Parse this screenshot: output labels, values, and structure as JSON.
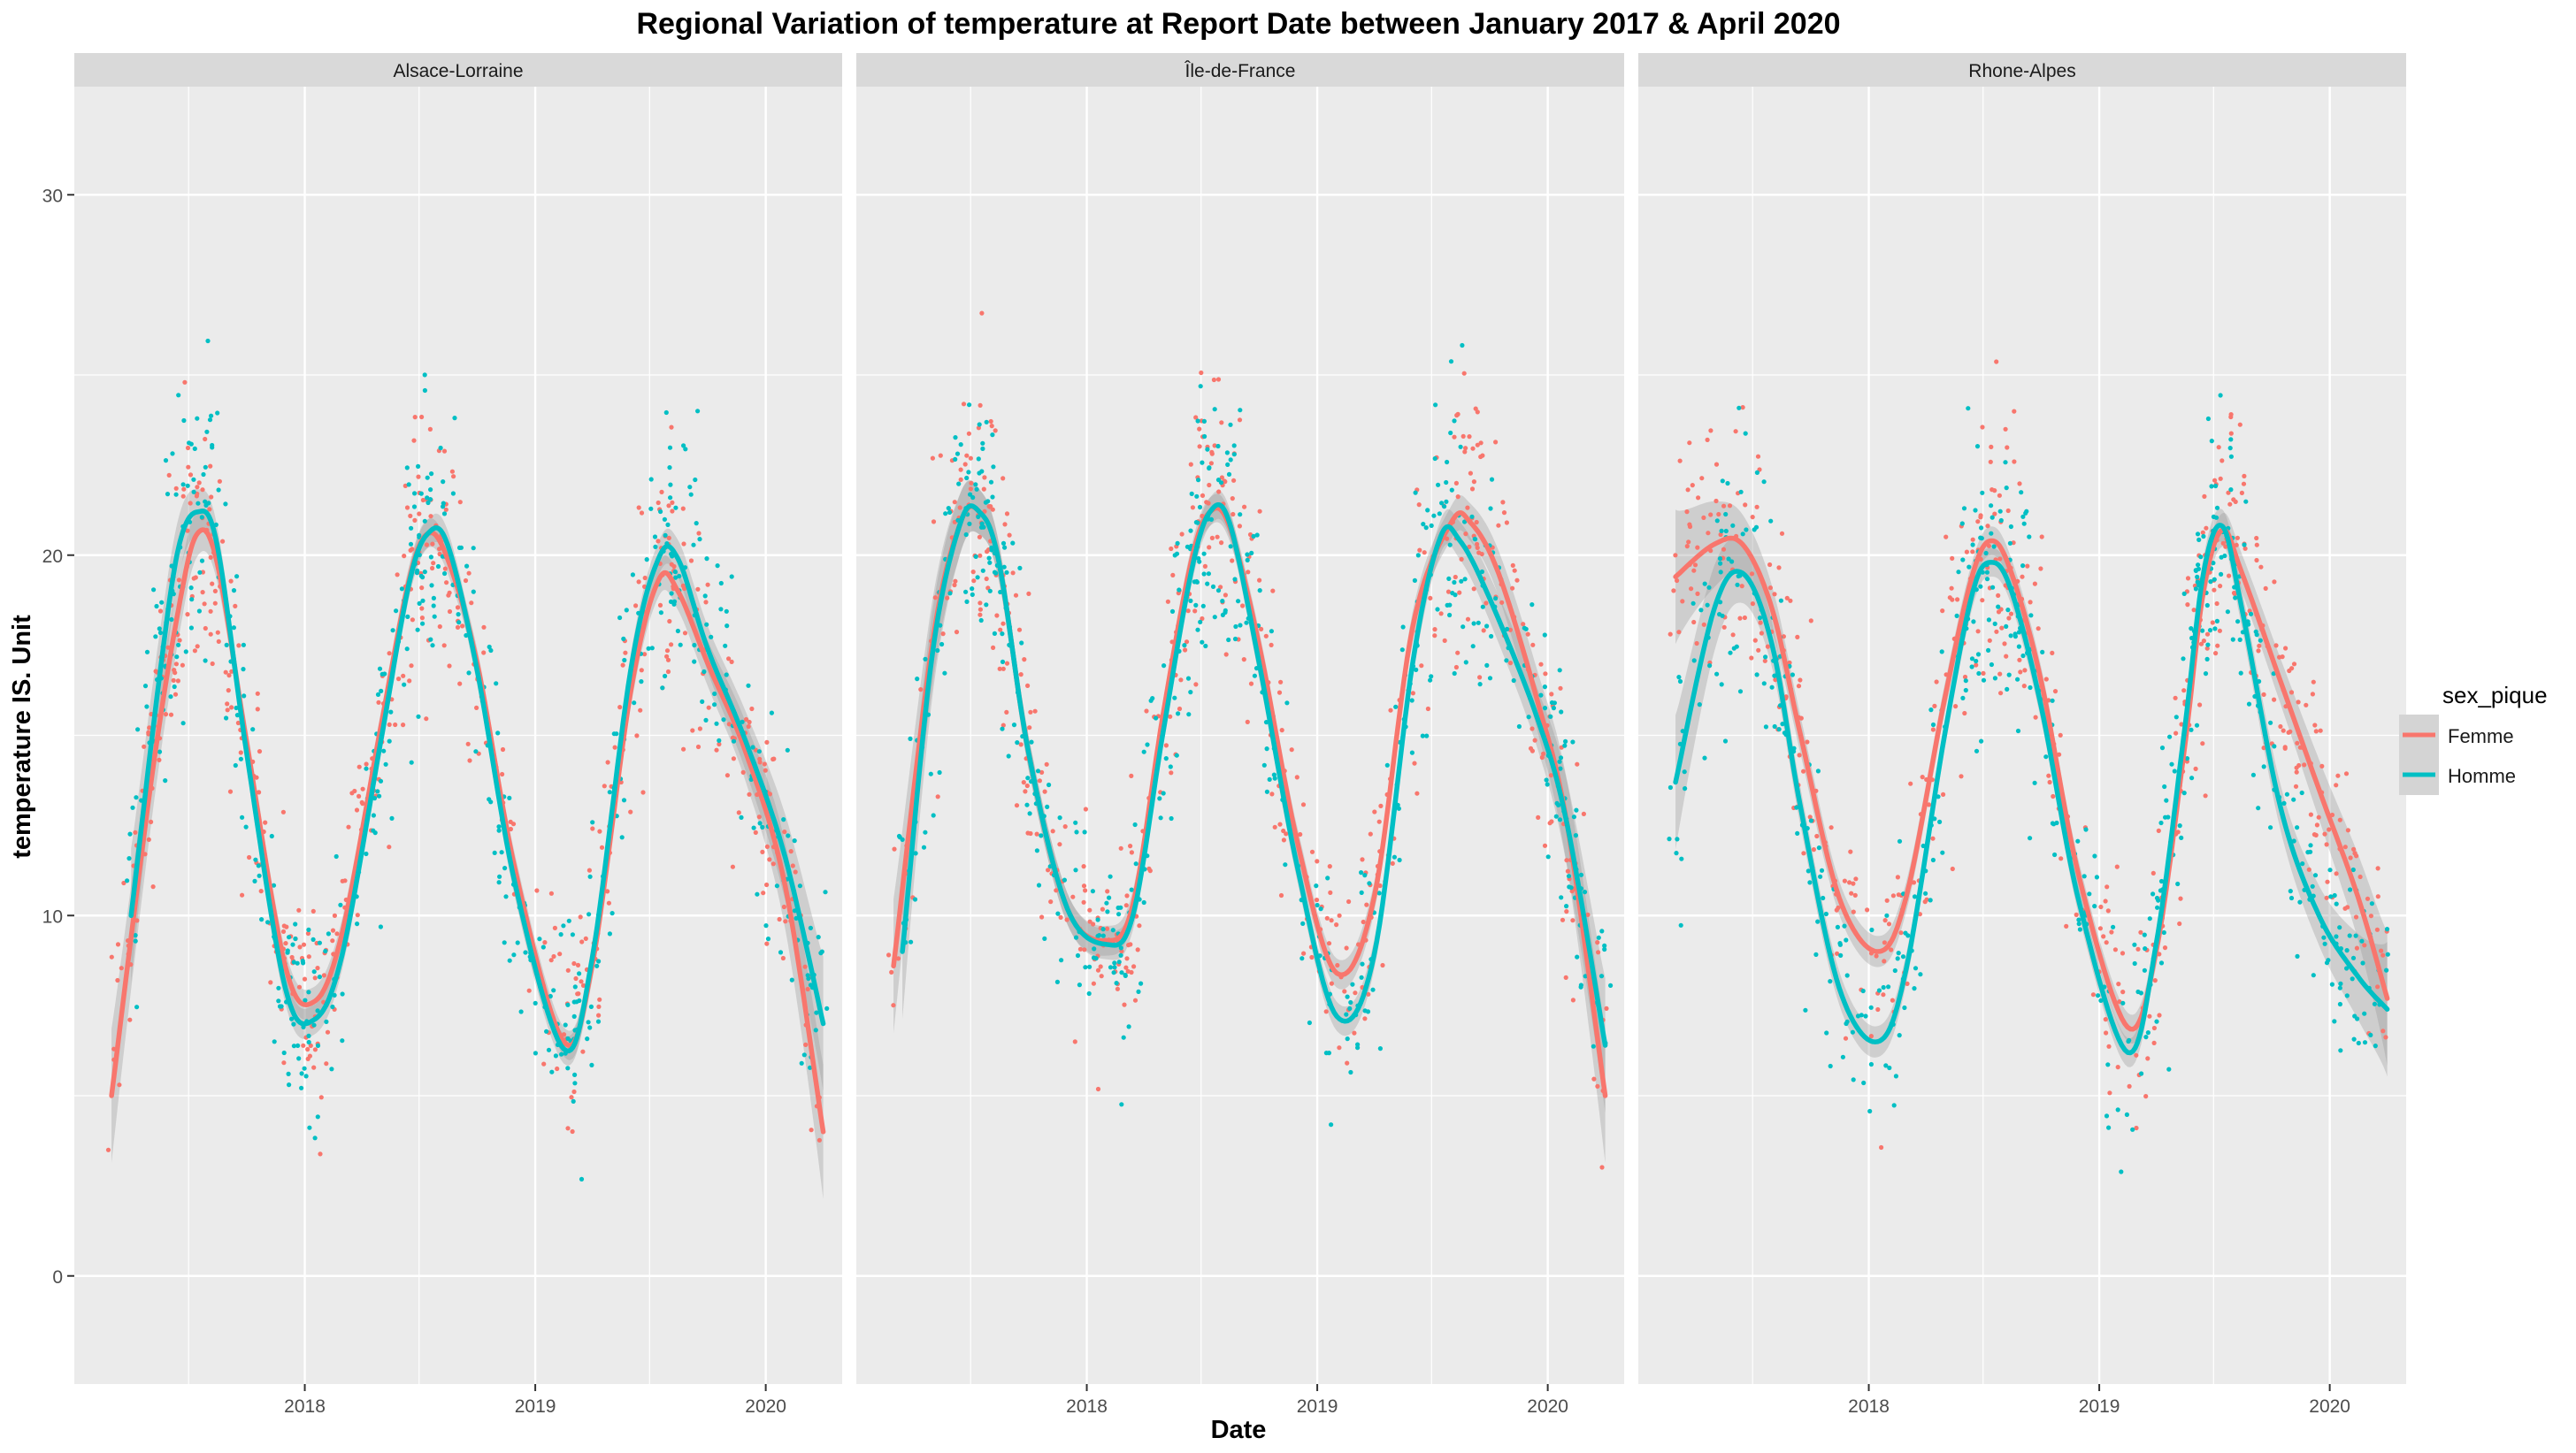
{
  "chart_data": {
    "type": "scatter",
    "title": "Regional Variation of  temperature  at Report Date between January 2017 & April 2020",
    "xlabel": "Date",
    "ylabel": "temperature  IS. Unit",
    "x_ticks": [
      "2018",
      "2019",
      "2020"
    ],
    "y_ticks": [
      "0",
      "10",
      "20",
      "30"
    ],
    "xlim": [
      "2017-01-01",
      "2020-05-01"
    ],
    "ylim": [
      -3,
      33
    ],
    "grid": true,
    "legend": {
      "title": "sex_pique",
      "position": "right",
      "entries": [
        "Femme",
        "Homme"
      ]
    },
    "colors": {
      "Femme": "#F8766D",
      "Homme": "#00BFC4",
      "panel_bg": "#EBEBEB",
      "strip_bg": "#D9D9D9",
      "grid": "#FFFFFF",
      "band": "#999999"
    },
    "facets": [
      {
        "name": "Alsace-Lorraine",
        "smooth": {
          "Femme": {
            "x": [
              "2017-03-01",
              "2017-05-01",
              "2017-06-15",
              "2017-07-15",
              "2017-08-15",
              "2017-10-01",
              "2017-12-01",
              "2018-01-15",
              "2018-03-01",
              "2018-05-01",
              "2018-06-15",
              "2018-07-15",
              "2018-08-15",
              "2018-10-01",
              "2018-12-01",
              "2019-02-15",
              "2019-04-01",
              "2019-06-01",
              "2019-07-15",
              "2019-08-15",
              "2019-10-01",
              "2019-12-01",
              "2020-02-01",
              "2020-04-01"
            ],
            "y": [
              5.0,
              13.5,
              18.5,
              20.6,
              19.8,
              14.8,
              8.6,
              7.6,
              9.5,
              15.2,
              19.3,
              20.6,
              19.9,
              17.0,
              11.2,
              6.5,
              8.6,
              16.2,
              19.3,
              19.0,
              17.0,
              14.5,
              10.8,
              4.0
            ]
          },
          "Homme": {
            "x": [
              "2017-04-01",
              "2017-05-15",
              "2017-06-15",
              "2017-07-15",
              "2017-08-15",
              "2017-10-01",
              "2017-12-01",
              "2018-01-15",
              "2018-03-01",
              "2018-05-01",
              "2018-06-15",
              "2018-07-15",
              "2018-08-15",
              "2018-10-01",
              "2018-12-01",
              "2019-02-15",
              "2019-04-01",
              "2019-06-01",
              "2019-07-15",
              "2019-08-15",
              "2019-10-01",
              "2019-12-01",
              "2020-02-01",
              "2020-04-01"
            ],
            "y": [
              10.0,
              16.5,
              20.2,
              21.2,
              20.3,
              14.5,
              8.0,
              7.1,
              8.9,
              14.8,
              19.2,
              20.6,
              20.3,
              16.8,
              10.8,
              6.3,
              8.8,
              16.8,
              19.9,
              19.9,
              17.4,
              14.8,
              11.6,
              7.0
            ]
          }
        }
      },
      {
        "name": "Île-de-France",
        "smooth": {
          "Femme": {
            "x": [
              "2017-03-01",
              "2017-05-01",
              "2017-06-15",
              "2017-07-15",
              "2017-08-15",
              "2017-10-01",
              "2017-12-01",
              "2018-02-01",
              "2018-03-15",
              "2018-05-01",
              "2018-06-15",
              "2018-07-15",
              "2018-08-15",
              "2018-10-01",
              "2018-12-01",
              "2019-02-01",
              "2019-04-01",
              "2019-06-01",
              "2019-08-01",
              "2019-09-01",
              "2019-10-15",
              "2019-12-15",
              "2020-02-01",
              "2020-04-01"
            ],
            "y": [
              8.6,
              17.5,
              20.9,
              21.2,
              19.8,
              14.5,
              10.2,
              9.3,
              10.3,
              15.5,
              19.8,
              21.2,
              20.8,
              17.5,
              12.0,
              8.4,
              10.5,
              18.0,
              20.9,
              20.9,
              19.5,
              16.0,
              12.5,
              5.0
            ]
          },
          "Homme": {
            "x": [
              "2017-03-15",
              "2017-05-01",
              "2017-06-15",
              "2017-07-15",
              "2017-08-15",
              "2017-10-01",
              "2017-12-01",
              "2018-02-01",
              "2018-03-15",
              "2018-05-01",
              "2018-06-15",
              "2018-07-15",
              "2018-08-15",
              "2018-10-01",
              "2018-12-01",
              "2019-02-01",
              "2019-04-01",
              "2019-06-01",
              "2019-07-15",
              "2019-08-15",
              "2019-10-01",
              "2019-12-15",
              "2020-02-01",
              "2020-04-01"
            ],
            "y": [
              9.0,
              17.2,
              20.9,
              21.2,
              19.8,
              14.5,
              10.2,
              9.2,
              10.0,
              15.0,
              19.5,
              21.2,
              20.9,
              17.0,
              11.3,
              7.2,
              8.9,
              17.0,
              20.5,
              20.4,
              18.8,
              15.5,
              12.5,
              6.4
            ]
          }
        }
      },
      {
        "name": "Rhone-Alpes",
        "smooth": {
          "Femme": {
            "x": [
              "2017-03-01",
              "2017-05-01",
              "2017-06-15",
              "2017-08-01",
              "2017-09-15",
              "2017-11-15",
              "2018-01-15",
              "2018-03-01",
              "2018-05-01",
              "2018-06-15",
              "2018-07-15",
              "2018-08-15",
              "2018-10-01",
              "2018-12-01",
              "2019-02-15",
              "2019-04-01",
              "2019-05-15",
              "2019-06-15",
              "2019-07-15",
              "2019-08-15",
              "2019-10-15",
              "2019-12-15",
              "2020-02-15",
              "2020-04-01"
            ],
            "y": [
              19.4,
              20.3,
              20.3,
              18.5,
              15.0,
              10.5,
              9.0,
              10.5,
              16.0,
              19.5,
              20.4,
              19.5,
              16.5,
              11.0,
              6.9,
              9.0,
              14.5,
              19.0,
              20.7,
              19.5,
              16.5,
              13.5,
              10.5,
              7.7
            ]
          },
          "Homme": {
            "x": [
              "2017-03-01",
              "2017-05-01",
              "2017-06-15",
              "2017-08-01",
              "2017-09-15",
              "2017-11-15",
              "2018-01-15",
              "2018-03-01",
              "2018-05-01",
              "2018-06-15",
              "2018-07-15",
              "2018-08-15",
              "2018-10-01",
              "2018-12-01",
              "2019-02-15",
              "2019-04-01",
              "2019-05-15",
              "2019-06-15",
              "2019-07-15",
              "2019-08-15",
              "2019-10-15",
              "2019-12-15",
              "2020-02-15",
              "2020-04-01"
            ],
            "y": [
              13.7,
              18.5,
              19.5,
              17.5,
              13.0,
              8.0,
              6.5,
              8.5,
              15.0,
              19.0,
              19.8,
              19.0,
              15.8,
              10.3,
              6.2,
              9.2,
              15.0,
              19.5,
              20.8,
              18.5,
              13.0,
              10.0,
              8.3,
              7.4
            ]
          }
        }
      }
    ]
  }
}
